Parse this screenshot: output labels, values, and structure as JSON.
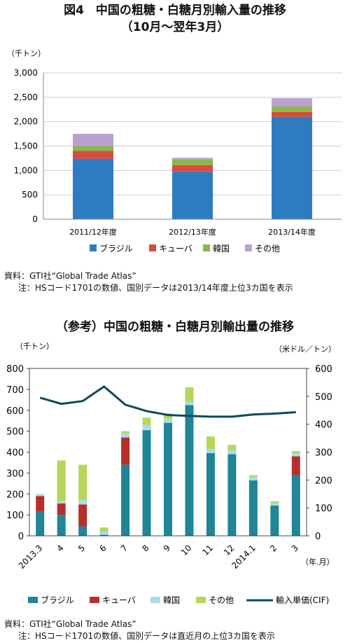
{
  "figure4": {
    "title_line1": "図4　中国の粗糖・白糖月別輸入量の推移",
    "title_line2": "（10月～翌年3月）",
    "source": "資料：GTI社“Global Trade Atlas”",
    "note": "注：HSコード1701の数値、国別データは2013/14年度上位3カ国を表示"
  },
  "figure_ref": {
    "title": "（参考）中国の粗糖・白糖月別輸出量の推移",
    "source": "資料：GTI社“Global Trade Atlas”",
    "note": "注：HSコード1701の数値、国別データは直近月の上位3カ国を表示"
  },
  "colors": {
    "brazil": "#2e7cbf",
    "cuba": "#d94a40",
    "korea": "#8ab84a",
    "other": "#b9a1cf",
    "brazil2": "#1f8597",
    "cuba2": "#b5302c",
    "korea2": "#a9dbe9",
    "other2": "#b5d65a",
    "price": "#0c4a5a"
  },
  "chart_data": [
    {
      "type": "bar",
      "stacked": true,
      "unit_label": "（千トン）",
      "categories": [
        "2011/12年度",
        "2012/13年度",
        "2013/14年度"
      ],
      "ylim": [
        0,
        3000
      ],
      "yticks": [
        "0",
        "500",
        "1,000",
        "1,500",
        "2,000",
        "2,500",
        "3,000"
      ],
      "ytick_values": [
        0,
        500,
        1000,
        1500,
        2000,
        2500,
        3000
      ],
      "series": [
        {
          "name": "ブラジル",
          "color_key": "brazil",
          "values": [
            1240,
            980,
            2100
          ]
        },
        {
          "name": "キューバ",
          "color_key": "cuba",
          "values": [
            160,
            130,
            100
          ]
        },
        {
          "name": "韓国",
          "color_key": "korea",
          "values": [
            100,
            120,
            110
          ]
        },
        {
          "name": "その他",
          "color_key": "other",
          "values": [
            250,
            30,
            170
          ]
        }
      ],
      "grid": true,
      "legend": "bottom"
    },
    {
      "type": "bar",
      "stacked": true,
      "left_unit_label": "（千トン）",
      "right_unit_label": "（米ドル／トン）",
      "x_unit_label": "（年.月）",
      "categories": [
        "2013.3",
        "4",
        "5",
        "6",
        "7",
        "8",
        "9",
        "10",
        "11",
        "12",
        "2014.1",
        "2",
        "3"
      ],
      "ylim": [
        0,
        800
      ],
      "yticks": [
        "0",
        "100",
        "200",
        "300",
        "400",
        "500",
        "600",
        "700",
        "800"
      ],
      "y2lim": [
        0,
        600
      ],
      "y2ticks": [
        "0",
        "100",
        "200",
        "300",
        "400",
        "500",
        "600"
      ],
      "series": [
        {
          "name": "ブラジル",
          "color_key": "brazil2",
          "values": [
            115,
            100,
            45,
            5,
            340,
            505,
            540,
            625,
            395,
            390,
            265,
            145,
            290
          ]
        },
        {
          "name": "キューバ",
          "color_key": "cuba2",
          "values": [
            75,
            55,
            105,
            0,
            130,
            0,
            0,
            0,
            0,
            0,
            0,
            0,
            90
          ]
        },
        {
          "name": "韓国",
          "color_key": "korea2",
          "values": [
            10,
            10,
            20,
            15,
            20,
            25,
            20,
            15,
            20,
            20,
            15,
            10,
            15
          ]
        },
        {
          "name": "その他",
          "color_key": "other2",
          "values": [
            0,
            195,
            170,
            20,
            10,
            35,
            25,
            70,
            60,
            25,
            10,
            10,
            10
          ]
        }
      ],
      "line_series": {
        "name": "輸入単価(CIF)",
        "color_key": "price",
        "axis": "right",
        "values": [
          495,
          473,
          483,
          535,
          470,
          447,
          433,
          430,
          427,
          427,
          435,
          438,
          443
        ]
      },
      "grid": false,
      "legend": "bottom"
    }
  ]
}
